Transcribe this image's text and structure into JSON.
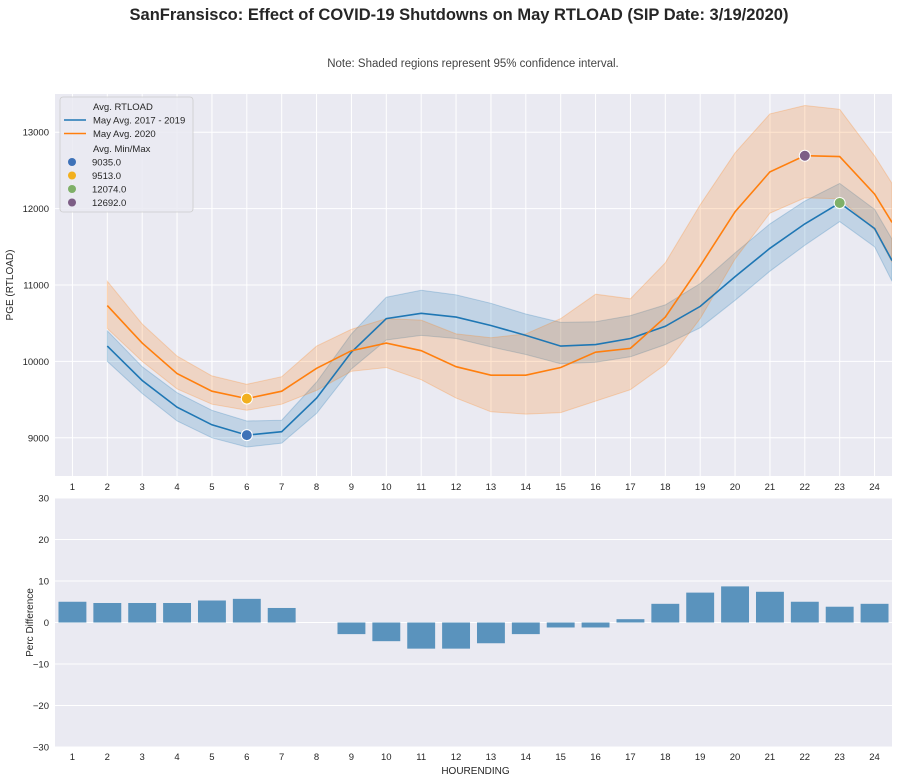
{
  "title": "SanFransisco: Effect of COVID-19 Shutdowns on May RTLOAD (SIP Date: 3/19/2020)",
  "note": "Note: Shaded regions represent 95% confidence interval.",
  "colors": {
    "background": "#eaeaf2",
    "grid": "#ffffff",
    "series_2017_2019": "#1f77b4",
    "series_2020": "#ff7f0e",
    "bars": "#5a93bd",
    "marker_9035": "#3e72b8",
    "marker_9513": "#f2b01e",
    "marker_12074": "#7fb068",
    "marker_12692": "#7d5e86"
  },
  "chart_data": [
    {
      "type": "line",
      "ylabel": "PGE (RTLOAD)",
      "xlabel": "",
      "categories": [
        "1",
        "2",
        "3",
        "4",
        "5",
        "6",
        "7",
        "8",
        "9",
        "10",
        "11",
        "12",
        "13",
        "14",
        "15",
        "16",
        "17",
        "18",
        "19",
        "20",
        "21",
        "22",
        "23",
        "24"
      ],
      "xlim": [
        0.5,
        24.5
      ],
      "ylim": [
        8500,
        13500
      ],
      "yticks": [
        9000,
        10000,
        11000,
        12000,
        13000
      ],
      "grid": true,
      "legend_position": "upper-left",
      "series": [
        {
          "name": "May Avg. 2017 - 2019",
          "x": [
            2,
            3,
            4,
            5,
            6,
            7,
            8,
            9,
            10,
            11,
            12,
            13,
            14,
            15,
            16,
            17,
            18,
            19,
            20,
            21,
            22,
            23,
            24,
            24.5
          ],
          "values": [
            10200,
            9750,
            9400,
            9170,
            9035,
            9080,
            9520,
            10120,
            10560,
            10630,
            10580,
            10470,
            10340,
            10200,
            10220,
            10300,
            10460,
            10720,
            11110,
            11480,
            11800,
            12074,
            11740,
            11320
          ],
          "ci_lower": [
            10000,
            9580,
            9220,
            9000,
            8880,
            8930,
            9320,
            9900,
            10280,
            10340,
            10300,
            10190,
            10090,
            9970,
            9990,
            10060,
            10220,
            10440,
            10800,
            11180,
            11520,
            11830,
            11500,
            11050
          ],
          "ci_upper": [
            10400,
            9930,
            9590,
            9360,
            9220,
            9230,
            9730,
            10360,
            10840,
            10930,
            10870,
            10760,
            10620,
            10510,
            10520,
            10600,
            10740,
            11020,
            11420,
            11800,
            12100,
            12330,
            11990,
            11600
          ]
        },
        {
          "name": "May Avg. 2020",
          "x": [
            2,
            3,
            4,
            5,
            6,
            7,
            8,
            9,
            10,
            11,
            12,
            13,
            14,
            15,
            16,
            17,
            18,
            19,
            20,
            21,
            22,
            23,
            24,
            24.5
          ],
          "values": [
            10730,
            10240,
            9840,
            9610,
            9513,
            9610,
            9910,
            10140,
            10240,
            10140,
            9930,
            9820,
            9820,
            9920,
            10120,
            10170,
            10580,
            11250,
            11960,
            12480,
            12692,
            12680,
            12190,
            11820
          ],
          "ci_lower": [
            10430,
            10000,
            9640,
            9440,
            9360,
            9440,
            9620,
            9870,
            9920,
            9760,
            9520,
            9340,
            9310,
            9330,
            9480,
            9630,
            9960,
            10560,
            11340,
            11940,
            12140,
            12130,
            11720,
            11300
          ],
          "ci_upper": [
            11050,
            10490,
            10070,
            9810,
            9700,
            9800,
            10200,
            10420,
            10560,
            10540,
            10360,
            10310,
            10360,
            10560,
            10880,
            10820,
            11290,
            12050,
            12730,
            13240,
            13350,
            13300,
            12690,
            12330
          ]
        }
      ],
      "markers": [
        {
          "label": "9035.0",
          "x": 6,
          "y": 9035
        },
        {
          "label": "9513.0",
          "x": 6,
          "y": 9513
        },
        {
          "label": "12074.0",
          "x": 23,
          "y": 12074
        },
        {
          "label": "12692.0",
          "x": 22,
          "y": 12692
        }
      ],
      "legend": {
        "title1": "Avg. RTLOAD",
        "title2": "Avg. Min/Max"
      }
    },
    {
      "type": "bar",
      "xlabel": "HOURENDING",
      "ylabel": "Perc Difference",
      "categories": [
        "1",
        "2",
        "3",
        "4",
        "5",
        "6",
        "7",
        "8",
        "9",
        "10",
        "11",
        "12",
        "13",
        "14",
        "15",
        "16",
        "17",
        "18",
        "19",
        "20",
        "21",
        "22",
        "23",
        "24"
      ],
      "values": [
        5.0,
        4.7,
        4.7,
        4.7,
        5.3,
        5.7,
        3.5,
        0.0,
        -2.8,
        -4.5,
        -6.3,
        -6.3,
        -5.0,
        -2.8,
        -1.2,
        -1.2,
        0.8,
        4.5,
        7.2,
        8.7,
        7.4,
        5.0,
        3.8,
        4.5
      ],
      "ylim": [
        -30,
        30
      ],
      "yticks": [
        -30,
        -20,
        -10,
        0,
        10,
        20,
        30
      ],
      "ytick_labels": [
        "−30",
        "−20",
        "−10",
        "0",
        "10",
        "20",
        "30"
      ],
      "grid": true
    }
  ]
}
